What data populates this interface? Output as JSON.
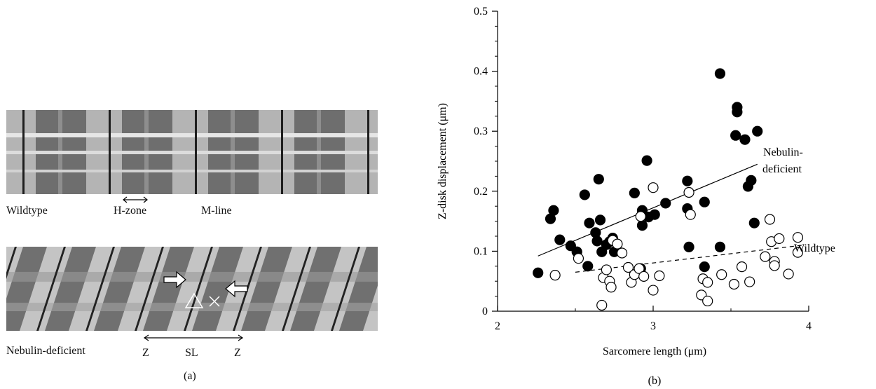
{
  "panel_a": {
    "caption": "(a)",
    "wildtype_label": "Wildtype",
    "hzone_label": "H-zone",
    "mline_label": "M-line",
    "nebulin_label": "Nebulin-deficient",
    "z_left_label": "Z",
    "sl_label": "SL",
    "z_right_label": "Z"
  },
  "panel_b": {
    "caption": "(b)",
    "nebulin_fit_label_line1": "Nebulin-",
    "nebulin_fit_label_line2": "deficient",
    "wildtype_fit_label": "Wildtype"
  },
  "chart_data": {
    "type": "scatter",
    "xlabel": "Sarcomere length (μm)",
    "ylabel": "Z-disk displacement (μm)",
    "xlim": [
      2,
      4
    ],
    "ylim": [
      0,
      0.5
    ],
    "x_ticks": [
      "2",
      "3",
      "4"
    ],
    "y_ticks": [
      "0",
      "0.1",
      "0.2",
      "0.3",
      "0.4",
      "0.5"
    ],
    "grid": false,
    "series": [
      {
        "name": "Nebulin-deficient",
        "marker": "filled-circle",
        "color": "#000000",
        "points": [
          [
            2.26,
            0.064
          ],
          [
            2.34,
            0.154
          ],
          [
            2.36,
            0.168
          ],
          [
            2.4,
            0.119
          ],
          [
            2.47,
            0.109
          ],
          [
            2.51,
            0.099
          ],
          [
            2.56,
            0.194
          ],
          [
            2.58,
            0.075
          ],
          [
            2.59,
            0.147
          ],
          [
            2.63,
            0.131
          ],
          [
            2.64,
            0.117
          ],
          [
            2.65,
            0.22
          ],
          [
            2.66,
            0.152
          ],
          [
            2.67,
            0.099
          ],
          [
            2.7,
            0.111
          ],
          [
            2.72,
            0.116
          ],
          [
            2.74,
            0.122
          ],
          [
            2.75,
            0.099
          ],
          [
            2.88,
            0.197
          ],
          [
            2.92,
            0.071
          ],
          [
            2.93,
            0.168
          ],
          [
            2.93,
            0.143
          ],
          [
            2.96,
            0.251
          ],
          [
            2.97,
            0.157
          ],
          [
            3.01,
            0.161
          ],
          [
            3.08,
            0.18
          ],
          [
            3.22,
            0.217
          ],
          [
            3.22,
            0.171
          ],
          [
            3.23,
            0.107
          ],
          [
            3.33,
            0.074
          ],
          [
            3.33,
            0.182
          ],
          [
            3.43,
            0.107
          ],
          [
            3.43,
            0.396
          ],
          [
            3.53,
            0.293
          ],
          [
            3.54,
            0.332
          ],
          [
            3.54,
            0.34
          ],
          [
            3.59,
            0.286
          ],
          [
            3.61,
            0.208
          ],
          [
            3.63,
            0.218
          ],
          [
            3.65,
            0.147
          ],
          [
            3.67,
            0.3
          ]
        ],
        "fit": {
          "style": "solid",
          "x": [
            2.26,
            3.67
          ],
          "y": [
            0.092,
            0.245
          ]
        }
      },
      {
        "name": "Wildtype",
        "marker": "open-circle",
        "color": "#000000",
        "points": [
          [
            2.37,
            0.06
          ],
          [
            2.52,
            0.088
          ],
          [
            2.67,
            0.01
          ],
          [
            2.68,
            0.056
          ],
          [
            2.7,
            0.069
          ],
          [
            2.72,
            0.05
          ],
          [
            2.73,
            0.04
          ],
          [
            2.74,
            0.118
          ],
          [
            2.77,
            0.112
          ],
          [
            2.8,
            0.097
          ],
          [
            2.84,
            0.073
          ],
          [
            2.86,
            0.048
          ],
          [
            2.88,
            0.061
          ],
          [
            2.91,
            0.071
          ],
          [
            2.92,
            0.158
          ],
          [
            2.94,
            0.058
          ],
          [
            3.0,
            0.206
          ],
          [
            3.0,
            0.035
          ],
          [
            3.04,
            0.059
          ],
          [
            3.23,
            0.198
          ],
          [
            3.24,
            0.161
          ],
          [
            3.31,
            0.027
          ],
          [
            3.32,
            0.054
          ],
          [
            3.35,
            0.048
          ],
          [
            3.35,
            0.017
          ],
          [
            3.44,
            0.061
          ],
          [
            3.52,
            0.045
          ],
          [
            3.57,
            0.074
          ],
          [
            3.62,
            0.049
          ],
          [
            3.72,
            0.091
          ],
          [
            3.75,
            0.153
          ],
          [
            3.76,
            0.116
          ],
          [
            3.78,
            0.083
          ],
          [
            3.78,
            0.076
          ],
          [
            3.81,
            0.121
          ],
          [
            3.87,
            0.062
          ],
          [
            3.93,
            0.098
          ],
          [
            3.93,
            0.123
          ]
        ],
        "fit": {
          "style": "dashed",
          "x": [
            2.5,
            3.96
          ],
          "y": [
            0.065,
            0.11
          ]
        }
      }
    ]
  }
}
